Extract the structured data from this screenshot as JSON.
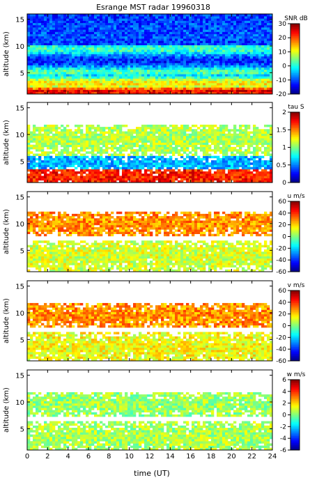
{
  "figure": {
    "title": "Esrange MST radar 19960318",
    "xlabel": "time (UT)"
  },
  "chart_data": [
    {
      "type": "heatmap",
      "panel": "snr",
      "ylabel": "altitude (km)",
      "colorbar_label": "SNR dB",
      "x_ticks": [
        0,
        2,
        4,
        6,
        8,
        10,
        12,
        14,
        16,
        18,
        20,
        22,
        24
      ],
      "xlim": [
        0,
        24
      ],
      "y_ticks": [
        5,
        10,
        15
      ],
      "ylim": [
        1,
        16
      ],
      "clim": [
        -20,
        30
      ],
      "colorbar_ticks": [
        30,
        20,
        10,
        0,
        -10,
        -20
      ],
      "layers": [
        {
          "alt": 1.5,
          "value": 25,
          "thickness": 1.2
        },
        {
          "alt": 3.0,
          "value": 12,
          "thickness": 1.5
        },
        {
          "alt": 5.2,
          "value": 3,
          "thickness": 1.0
        },
        {
          "alt": 9.5,
          "value": 2,
          "thickness": 1.2
        },
        {
          "alt": 12.5,
          "value": -10,
          "thickness": 3
        }
      ],
      "background_value": -12
    },
    {
      "type": "heatmap",
      "panel": "tau",
      "ylabel": "altitude (km)",
      "colorbar_label": "tau S",
      "x_ticks": [
        0,
        2,
        4,
        6,
        8,
        10,
        12,
        14,
        16,
        18,
        20,
        22,
        24
      ],
      "xlim": [
        0,
        24
      ],
      "y_ticks": [
        5,
        10,
        15
      ],
      "ylim": [
        1,
        16
      ],
      "clim": [
        0,
        2
      ],
      "colorbar_ticks": [
        2,
        1.5,
        1,
        0.5,
        0
      ],
      "layers": [
        {
          "alt": 2.0,
          "value": 1.7,
          "thickness": 1.6
        },
        {
          "alt": 4.5,
          "value": 0.6,
          "thickness": 1.2
        },
        {
          "alt": 9.0,
          "value": 1.1,
          "thickness": 2.5
        }
      ],
      "coverage": "gaps"
    },
    {
      "type": "heatmap",
      "panel": "u",
      "ylabel": "altitude (km)",
      "colorbar_label": "u m/s",
      "x_ticks": [
        0,
        2,
        4,
        6,
        8,
        10,
        12,
        14,
        16,
        18,
        20,
        22,
        24
      ],
      "xlim": [
        0,
        24
      ],
      "y_ticks": [
        5,
        10,
        15
      ],
      "ylim": [
        1,
        16
      ],
      "clim": [
        -60,
        60
      ],
      "colorbar_ticks": [
        60,
        40,
        20,
        0,
        -20,
        -40,
        -60
      ],
      "layers": [
        {
          "alt": 10.0,
          "value": 28,
          "thickness": 2.0
        },
        {
          "alt": 4.0,
          "value": 10,
          "thickness": 2.5
        }
      ],
      "coverage": "gaps"
    },
    {
      "type": "heatmap",
      "panel": "v",
      "ylabel": "altitude (km)",
      "colorbar_label": "v m/s",
      "x_ticks": [
        0,
        2,
        4,
        6,
        8,
        10,
        12,
        14,
        16,
        18,
        20,
        22,
        24
      ],
      "xlim": [
        0,
        24
      ],
      "y_ticks": [
        5,
        10,
        15
      ],
      "ylim": [
        1,
        16
      ],
      "clim": [
        -60,
        60
      ],
      "colorbar_ticks": [
        60,
        40,
        20,
        0,
        -20,
        -40,
        -60
      ],
      "layers": [
        {
          "alt": 9.5,
          "value": 28,
          "thickness": 2.0
        },
        {
          "alt": 3.5,
          "value": 14,
          "thickness": 2.5
        }
      ],
      "coverage": "gaps"
    },
    {
      "type": "heatmap",
      "panel": "w",
      "ylabel": "altitude (km)",
      "colorbar_label": "w m/s",
      "x_ticks": [
        0,
        2,
        4,
        6,
        8,
        10,
        12,
        14,
        16,
        18,
        20,
        22,
        24
      ],
      "xlim": [
        0,
        24
      ],
      "y_ticks": [
        5,
        10,
        15
      ],
      "ylim": [
        1,
        16
      ],
      "clim": [
        -6,
        6
      ],
      "colorbar_ticks": [
        6,
        4,
        2,
        0,
        -2,
        -4,
        -6
      ],
      "layers": [
        {
          "alt": 9.5,
          "value": 0.3,
          "thickness": 2.0
        },
        {
          "alt": 3.5,
          "value": 0.5,
          "thickness": 2.5
        }
      ],
      "coverage": "gaps"
    }
  ]
}
